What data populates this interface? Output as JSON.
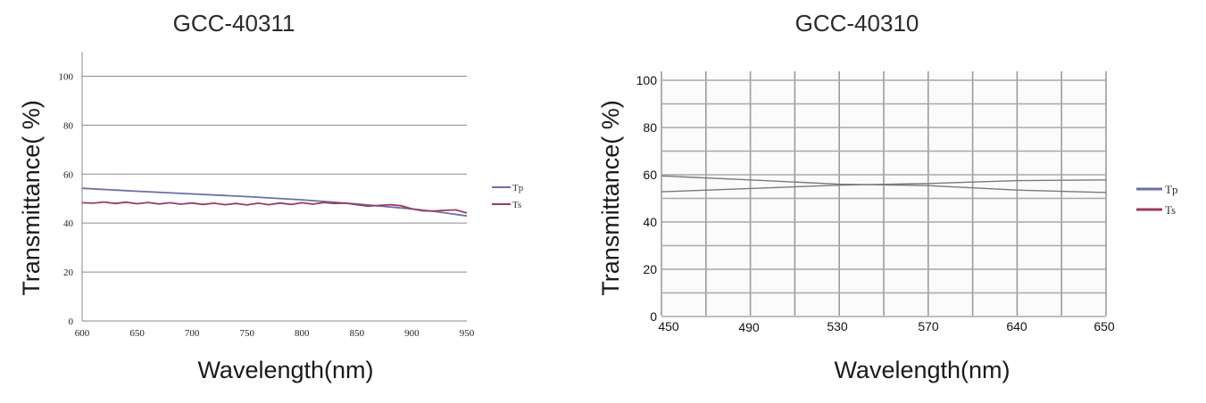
{
  "chart_data": [
    {
      "type": "line",
      "title": "GCC-40311",
      "xlabel": "Wavelength(nm)",
      "ylabel": "Transmittance( %)",
      "xlim": [
        600,
        950
      ],
      "ylim": [
        0,
        110
      ],
      "xticks": [
        "600",
        "650",
        "700",
        "750",
        "800",
        "850",
        "900",
        "950"
      ],
      "yticks": [
        "0",
        "20",
        "40",
        "60",
        "80",
        "100"
      ],
      "grid": "horizontal",
      "legend_position": "right",
      "series": [
        {
          "name": "Tp",
          "color": "#6a6fa3",
          "x": [
            600,
            650,
            700,
            750,
            800,
            850,
            880,
            900,
            920,
            950
          ],
          "y": [
            54.2,
            53.0,
            51.9,
            50.8,
            49.5,
            47.8,
            46.6,
            45.8,
            44.8,
            42.9
          ]
        },
        {
          "name": "Ts",
          "color": "#9b3a63",
          "x": [
            600,
            610,
            620,
            630,
            640,
            650,
            660,
            670,
            680,
            690,
            700,
            710,
            720,
            730,
            740,
            750,
            760,
            770,
            780,
            790,
            800,
            810,
            820,
            830,
            840,
            850,
            860,
            870,
            880,
            890,
            900,
            910,
            920,
            930,
            940,
            950
          ],
          "y": [
            48.3,
            48.1,
            48.6,
            48.0,
            48.5,
            47.9,
            48.4,
            47.8,
            48.3,
            47.7,
            48.2,
            47.6,
            48.1,
            47.5,
            48.0,
            47.4,
            48.1,
            47.5,
            48.2,
            47.6,
            48.3,
            47.7,
            48.4,
            48.0,
            48.1,
            47.5,
            46.9,
            47.2,
            47.5,
            47.1,
            45.8,
            45.0,
            44.9,
            45.2,
            45.4,
            44.1
          ]
        }
      ]
    },
    {
      "type": "line",
      "title": "GCC-40310",
      "xlabel": "Wavelength(nm)",
      "ylabel": "Transmittance( %)",
      "xticks": [
        "450",
        "490",
        "530",
        "570",
        "640",
        "650"
      ],
      "yticks": [
        "0",
        "20",
        "40",
        "60",
        "80",
        "100"
      ],
      "ylim": [
        0,
        100
      ],
      "grid": "both",
      "legend_position": "right",
      "series": [
        {
          "name": "Tp",
          "color": "#6a6fa3",
          "x": [
            450,
            490,
            530,
            570,
            640,
            650
          ],
          "y": [
            59.5,
            57.8,
            56.0,
            55.4,
            53.5,
            52.5
          ]
        },
        {
          "name": "Ts",
          "color": "#9b3a63",
          "x": [
            450,
            490,
            530,
            570,
            640,
            650
          ],
          "y": [
            52.8,
            54.2,
            55.6,
            56.3,
            57.5,
            57.8
          ]
        }
      ]
    }
  ]
}
